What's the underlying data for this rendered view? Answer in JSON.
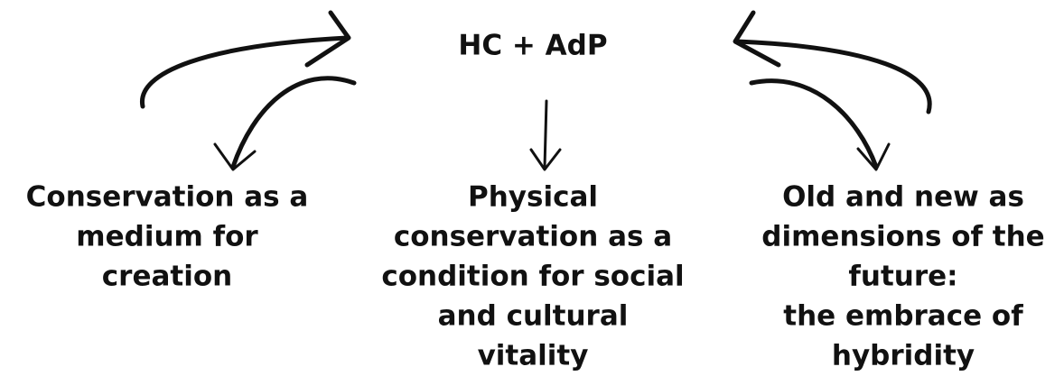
{
  "title": "HC + AdP",
  "nodes": [
    {
      "lines": [
        "Conservation as a",
        "medium for",
        "creation"
      ]
    },
    {
      "lines": [
        "Physical",
        "conservation as a",
        "condition  for social",
        "and cultural",
        "vitality"
      ]
    },
    {
      "lines": [
        "Old and new as",
        "dimensions of the",
        "future:",
        "the embrace of",
        "hybridity"
      ]
    }
  ]
}
